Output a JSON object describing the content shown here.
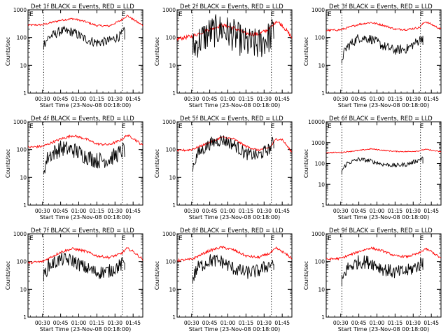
{
  "chart_data": [
    {
      "type": "line",
      "title": "Det 1f  BLACK = Events, RED = LLD",
      "xlabel": "Start Time (23-Nov-08 00:18:00)",
      "ylabel": "Counts/sec",
      "yscale": "log",
      "ylim": [
        1,
        1000
      ],
      "xlim": [
        "00:18",
        "01:53"
      ],
      "x_ticks": [
        "00:30",
        "00:45",
        "01:00",
        "01:15",
        "01:30",
        "01:45"
      ],
      "y_ticks": [
        "1",
        "10",
        "100",
        "1000"
      ],
      "vlines": [
        "00:31",
        "01:36"
      ],
      "markers": [
        "E",
        "E"
      ],
      "series": [
        {
          "color": "#ff0000",
          "x": [
            "00:18",
            "00:30",
            "00:45",
            "00:55",
            "01:05",
            "01:15",
            "01:25",
            "01:35",
            "01:40",
            "01:45",
            "01:53"
          ],
          "y": [
            280,
            290,
            420,
            480,
            380,
            270,
            260,
            420,
            620,
            450,
            270
          ]
        },
        {
          "color": "#000000",
          "x": [
            "00:31",
            "00:35",
            "00:45",
            "00:55",
            "01:05",
            "01:15",
            "01:25",
            "01:35",
            "01:38"
          ],
          "y": [
            60,
            100,
            170,
            160,
            90,
            65,
            75,
            120,
            170
          ]
        }
      ]
    },
    {
      "type": "line",
      "title": "Det 2f  BLACK = Events, RED = LLD",
      "xlabel": "Start Time (23-Nov-08 00:18:00)",
      "ylabel": "Counts/sec",
      "yscale": "log",
      "ylim": [
        1,
        1000
      ],
      "xlim": [
        "00:18",
        "01:53"
      ],
      "x_ticks": [
        "00:30",
        "00:45",
        "01:00",
        "01:15",
        "01:30",
        "01:45"
      ],
      "y_ticks": [
        "1",
        "10",
        "100",
        "1000"
      ],
      "vlines": [
        "00:31",
        "01:36"
      ],
      "markers": [
        "E",
        "E"
      ],
      "series": [
        {
          "color": "#ff0000",
          "x": [
            "00:18",
            "00:30",
            "00:45",
            "00:55",
            "01:05",
            "01:15",
            "01:25",
            "01:35",
            "01:40",
            "01:45",
            "01:53"
          ],
          "y": [
            90,
            110,
            200,
            280,
            220,
            140,
            130,
            210,
            400,
            280,
            100
          ]
        },
        {
          "color": "#000000",
          "x": [
            "00:31",
            "00:35",
            "00:45",
            "00:55",
            "01:05",
            "01:15",
            "01:25",
            "01:35",
            "01:38"
          ],
          "y": [
            40,
            70,
            150,
            200,
            120,
            60,
            55,
            110,
            180
          ]
        }
      ]
    },
    {
      "type": "line",
      "title": "Det 3f  BLACK = Events, RED = LLD",
      "xlabel": "Start Time (23-Nov-08 00:18:00)",
      "ylabel": "Counts/sec",
      "yscale": "log",
      "ylim": [
        1,
        1000
      ],
      "xlim": [
        "00:18",
        "01:53"
      ],
      "x_ticks": [
        "00:30",
        "00:45",
        "01:00",
        "01:15",
        "01:30",
        "01:45"
      ],
      "y_ticks": [
        "1",
        "10",
        "100",
        "1000"
      ],
      "vlines": [
        "00:31",
        "01:36"
      ],
      "markers": [
        "E",
        "E"
      ],
      "series": [
        {
          "color": "#ff0000",
          "x": [
            "00:18",
            "00:30",
            "00:45",
            "00:55",
            "01:05",
            "01:15",
            "01:25",
            "01:35",
            "01:40",
            "01:45",
            "01:53"
          ],
          "y": [
            180,
            190,
            300,
            350,
            280,
            200,
            195,
            230,
            380,
            300,
            200
          ]
        },
        {
          "color": "#000000",
          "x": [
            "00:31",
            "00:35",
            "00:45",
            "00:55",
            "01:05",
            "01:15",
            "01:25",
            "01:35",
            "01:38"
          ],
          "y": [
            18,
            45,
            100,
            90,
            50,
            35,
            40,
            80,
            110
          ]
        }
      ]
    },
    {
      "type": "line",
      "title": "Det 4f  BLACK = Events, RED = LLD",
      "xlabel": "Start Time (23-Nov-08 00:18:00)",
      "ylabel": "Counts/sec",
      "yscale": "log",
      "ylim": [
        1,
        1000
      ],
      "xlim": [
        "00:18",
        "01:53"
      ],
      "x_ticks": [
        "00:30",
        "00:45",
        "01:00",
        "01:15",
        "01:30",
        "01:45"
      ],
      "y_ticks": [
        "1",
        "10",
        "100",
        "1000"
      ],
      "vlines": [
        "00:31",
        "01:36"
      ],
      "markers": [
        "E",
        "E"
      ],
      "series": [
        {
          "color": "#ff0000",
          "x": [
            "00:18",
            "00:30",
            "00:45",
            "00:55",
            "01:05",
            "01:15",
            "01:25",
            "01:35",
            "01:40",
            "01:45",
            "01:53"
          ],
          "y": [
            120,
            130,
            240,
            320,
            250,
            160,
            150,
            220,
            330,
            260,
            140
          ]
        },
        {
          "color": "#000000",
          "x": [
            "00:31",
            "00:35",
            "00:45",
            "00:55",
            "01:05",
            "01:15",
            "01:25",
            "01:35",
            "01:38"
          ],
          "y": [
            20,
            60,
            110,
            100,
            60,
            40,
            45,
            80,
            110
          ]
        }
      ]
    },
    {
      "type": "line",
      "title": "Det 5f  BLACK = Events, RED = LLD",
      "xlabel": "Start Time (23-Nov-08 00:18:00)",
      "ylabel": "Counts/sec",
      "yscale": "log",
      "ylim": [
        1,
        1000
      ],
      "xlim": [
        "00:18",
        "01:53"
      ],
      "x_ticks": [
        "00:30",
        "00:45",
        "01:00",
        "01:15",
        "01:30",
        "01:45"
      ],
      "y_ticks": [
        "1",
        "10",
        "100",
        "1000"
      ],
      "vlines": [
        "00:31",
        "01:36"
      ],
      "markers": [
        "E",
        "E"
      ],
      "series": [
        {
          "color": "#ff0000",
          "x": [
            "00:18",
            "00:30",
            "00:45",
            "00:55",
            "01:05",
            "01:15",
            "01:25",
            "01:35",
            "01:40",
            "01:45",
            "01:53"
          ],
          "y": [
            90,
            100,
            180,
            280,
            240,
            130,
            95,
            120,
            240,
            230,
            80
          ]
        },
        {
          "color": "#000000",
          "x": [
            "00:31",
            "00:35",
            "00:45",
            "00:55",
            "01:05",
            "01:15",
            "01:25",
            "01:35",
            "01:38"
          ],
          "y": [
            25,
            70,
            160,
            230,
            150,
            70,
            60,
            110,
            220
          ]
        }
      ]
    },
    {
      "type": "line",
      "title": "Det 6f  BLACK = Events, RED = LLD",
      "xlabel": "Start Time (23-Nov-08 00:18:00)",
      "ylabel": "Counts/sec",
      "yscale": "log",
      "ylim": [
        1,
        10000
      ],
      "xlim": [
        "00:18",
        "01:53"
      ],
      "x_ticks": [
        "00:30",
        "00:45",
        "01:00",
        "01:15",
        "01:30",
        "01:45"
      ],
      "y_ticks": [
        "1",
        "10",
        "100",
        "1000",
        "10000"
      ],
      "vlines": [
        "00:31",
        "01:36"
      ],
      "markers": [
        "E",
        "E"
      ],
      "series": [
        {
          "color": "#ff0000",
          "x": [
            "00:18",
            "00:30",
            "00:45",
            "00:55",
            "01:05",
            "01:15",
            "01:25",
            "01:35",
            "01:40",
            "01:45",
            "01:53"
          ],
          "y": [
            330,
            340,
            420,
            500,
            430,
            380,
            370,
            400,
            480,
            430,
            360
          ]
        },
        {
          "color": "#000000",
          "x": [
            "00:31",
            "00:35",
            "00:45",
            "00:55",
            "01:05",
            "01:15",
            "01:25",
            "01:35",
            "01:38"
          ],
          "y": [
            45,
            100,
            160,
            130,
            90,
            80,
            90,
            150,
            200
          ]
        }
      ]
    },
    {
      "type": "line",
      "title": "Det 7f  BLACK = Events, RED = LLD",
      "xlabel": "Start Time (23-Nov-08 00:18:00)",
      "ylabel": "Counts/sec",
      "yscale": "log",
      "ylim": [
        1,
        1000
      ],
      "xlim": [
        "00:18",
        "01:53"
      ],
      "x_ticks": [
        "00:30",
        "00:45",
        "01:00",
        "01:15",
        "01:30",
        "01:45"
      ],
      "y_ticks": [
        "1",
        "10",
        "100",
        "1000"
      ],
      "vlines": [
        "00:31",
        "01:36"
      ],
      "markers": [
        "E",
        "E"
      ],
      "series": [
        {
          "color": "#ff0000",
          "x": [
            "00:18",
            "00:30",
            "00:45",
            "00:55",
            "01:05",
            "01:15",
            "01:25",
            "01:35",
            "01:40",
            "01:45",
            "01:53"
          ],
          "y": [
            90,
            100,
            220,
            290,
            240,
            160,
            140,
            190,
            300,
            230,
            120
          ]
        },
        {
          "color": "#000000",
          "x": [
            "00:31",
            "00:35",
            "00:45",
            "00:55",
            "01:05",
            "01:15",
            "01:25",
            "01:35",
            "01:38"
          ],
          "y": [
            30,
            70,
            120,
            110,
            60,
            40,
            45,
            75,
            100
          ]
        }
      ]
    },
    {
      "type": "line",
      "title": "Det 8f  BLACK = Events, RED = LLD",
      "xlabel": "Start Time (23-Nov-08 00:18:00)",
      "ylabel": "Counts/sec",
      "yscale": "log",
      "ylim": [
        1,
        1000
      ],
      "xlim": [
        "00:18",
        "01:53"
      ],
      "x_ticks": [
        "00:30",
        "00:45",
        "01:00",
        "01:15",
        "01:30",
        "01:45"
      ],
      "y_ticks": [
        "1",
        "10",
        "100",
        "1000"
      ],
      "vlines": [
        "00:31",
        "01:36"
      ],
      "markers": [
        "E",
        "E"
      ],
      "series": [
        {
          "color": "#ff0000",
          "x": [
            "00:18",
            "00:30",
            "00:45",
            "00:55",
            "01:05",
            "01:15",
            "01:25",
            "01:35",
            "01:40",
            "01:45",
            "01:53"
          ],
          "y": [
            110,
            120,
            250,
            330,
            260,
            160,
            140,
            200,
            300,
            230,
            130
          ]
        },
        {
          "color": "#000000",
          "x": [
            "00:31",
            "00:35",
            "00:45",
            "00:55",
            "01:05",
            "01:15",
            "01:25",
            "01:35",
            "01:38"
          ],
          "y": [
            25,
            60,
            110,
            100,
            55,
            40,
            45,
            80,
            100
          ]
        }
      ]
    },
    {
      "type": "line",
      "title": "Det 9f  BLACK = Events, RED = LLD",
      "xlabel": "Start Time (23-Nov-08 00:18:00)",
      "ylabel": "Counts/sec",
      "yscale": "log",
      "ylim": [
        1,
        1000
      ],
      "xlim": [
        "00:18",
        "01:53"
      ],
      "x_ticks": [
        "00:30",
        "00:45",
        "01:00",
        "01:15",
        "01:30",
        "01:45"
      ],
      "y_ticks": [
        "1",
        "10",
        "100",
        "1000"
      ],
      "vlines": [
        "00:31",
        "01:36"
      ],
      "markers": [
        "E",
        "E"
      ],
      "series": [
        {
          "color": "#ff0000",
          "x": [
            "00:18",
            "00:30",
            "00:45",
            "00:55",
            "01:05",
            "01:15",
            "01:25",
            "01:35",
            "01:40",
            "01:45",
            "01:53"
          ],
          "y": [
            120,
            130,
            230,
            310,
            240,
            160,
            150,
            200,
            290,
            230,
            130
          ]
        },
        {
          "color": "#000000",
          "x": [
            "00:31",
            "00:35",
            "00:45",
            "00:55",
            "01:05",
            "01:15",
            "01:25",
            "01:35",
            "01:38"
          ],
          "y": [
            20,
            55,
            100,
            95,
            55,
            40,
            45,
            75,
            100
          ]
        }
      ]
    }
  ]
}
